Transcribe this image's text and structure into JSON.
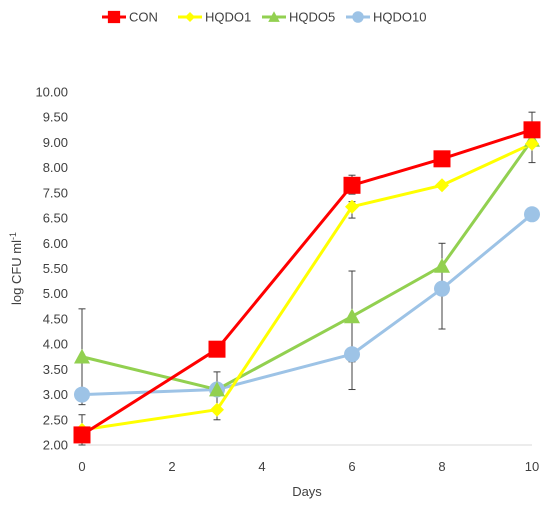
{
  "chart_data": {
    "type": "line",
    "xlabel": "Days",
    "ylabel": "log CFU ml",
    "ylabel_superscript": "-1",
    "x": [
      0,
      3,
      6,
      8,
      10
    ],
    "xticks": [
      "0",
      "2",
      "4",
      "6",
      "8",
      "10"
    ],
    "yticks": [
      "2.00",
      "2.50",
      "3.00",
      "3.50",
      "4.00",
      "4.50",
      "5.00",
      "5.50",
      "6.00",
      "6.50",
      "7.50",
      "8.00",
      "9.00",
      "9.50",
      "10.00"
    ],
    "grid": false,
    "legend_position": "top",
    "series": [
      {
        "name": "CON",
        "color": "#ff0000",
        "marker": "square",
        "values": [
          2.2,
          3.9,
          7.65,
          8.35,
          9.25
        ],
        "error_high": [
          null,
          4.05,
          7.85,
          null,
          9.6
        ],
        "error_low": [
          null,
          3.75,
          7.45,
          null,
          8.9
        ]
      },
      {
        "name": "HQDO1",
        "color": "#ffff00",
        "marker": "diamond",
        "values": [
          2.3,
          2.7,
          6.95,
          7.65,
          8.95
        ],
        "error_high": [
          2.6,
          null,
          7.15,
          null,
          null
        ],
        "error_low": [
          2.0,
          2.5,
          6.5,
          null,
          null
        ]
      },
      {
        "name": "HQDO5",
        "color": "#92d050",
        "marker": "triangle",
        "values": [
          3.75,
          3.1,
          4.55,
          5.55,
          9.05
        ],
        "error_high": [
          4.7,
          null,
          5.45,
          6.0,
          null
        ],
        "error_low": [
          2.8,
          null,
          3.65,
          4.3,
          8.2
        ]
      },
      {
        "name": "HQDO10",
        "color": "#9dc3e6",
        "marker": "circle",
        "values": [
          3.0,
          3.1,
          3.8,
          5.1,
          6.65
        ],
        "error_high": [
          null,
          3.45,
          null,
          null,
          6.75
        ],
        "error_low": [
          null,
          2.7,
          3.1,
          null,
          6.45
        ]
      }
    ]
  }
}
